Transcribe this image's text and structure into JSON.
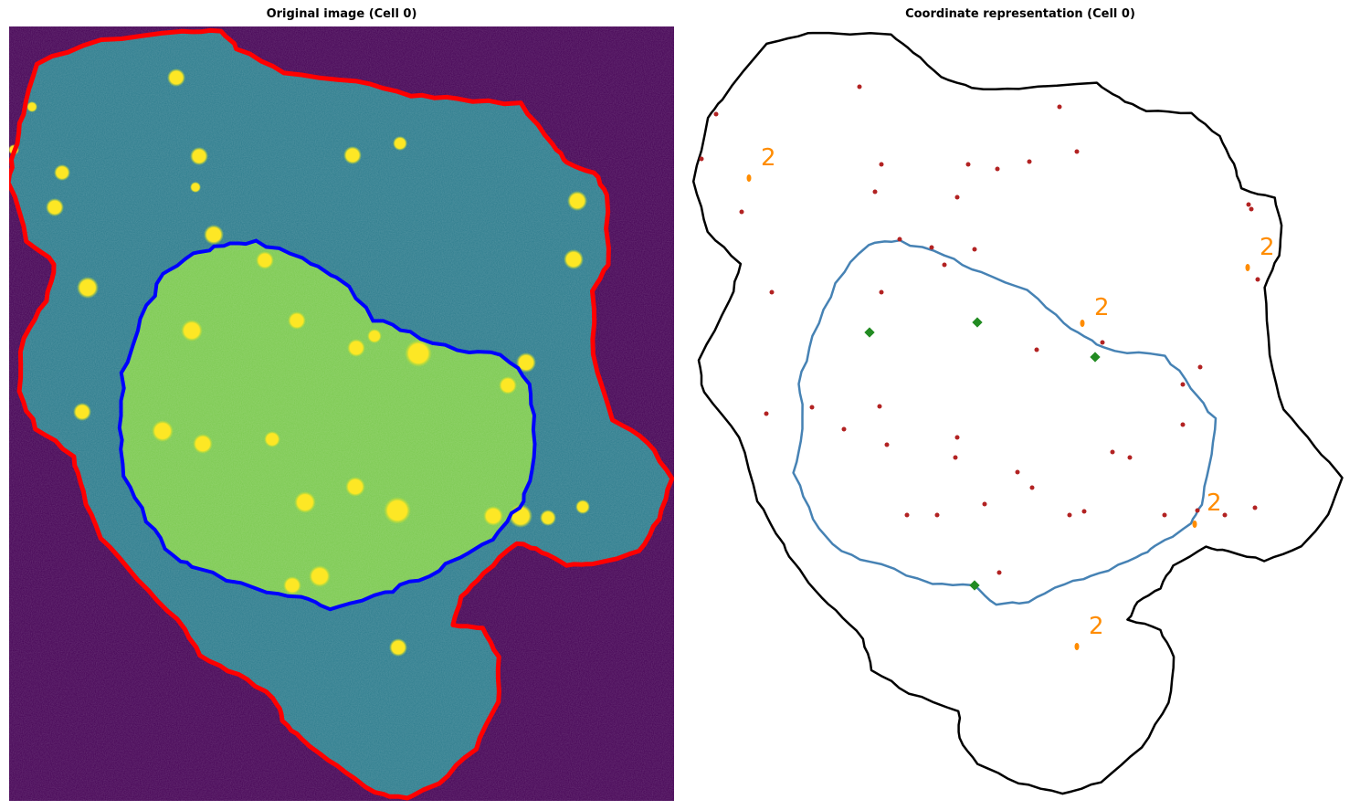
{
  "panels": {
    "left": {
      "title": "Original image (Cell 0)",
      "colors": {
        "background": "#440154",
        "cytoplasm": "#2b7b8c",
        "nucleus": "#7ac94e",
        "spot": "#fde725",
        "cell_outline": "#ff0000",
        "nucleus_outline": "#0000ff"
      }
    },
    "right": {
      "title": "Coordinate representation (Cell 0)",
      "colors": {
        "cell_outline": "#000000",
        "nucleus_outline": "#4682b4",
        "spot": "#b22222",
        "foci": "#228b22",
        "cluster": "#ff8c00"
      },
      "cluster_labels": [
        "2",
        "2",
        "2",
        "2",
        "2"
      ]
    }
  }
}
